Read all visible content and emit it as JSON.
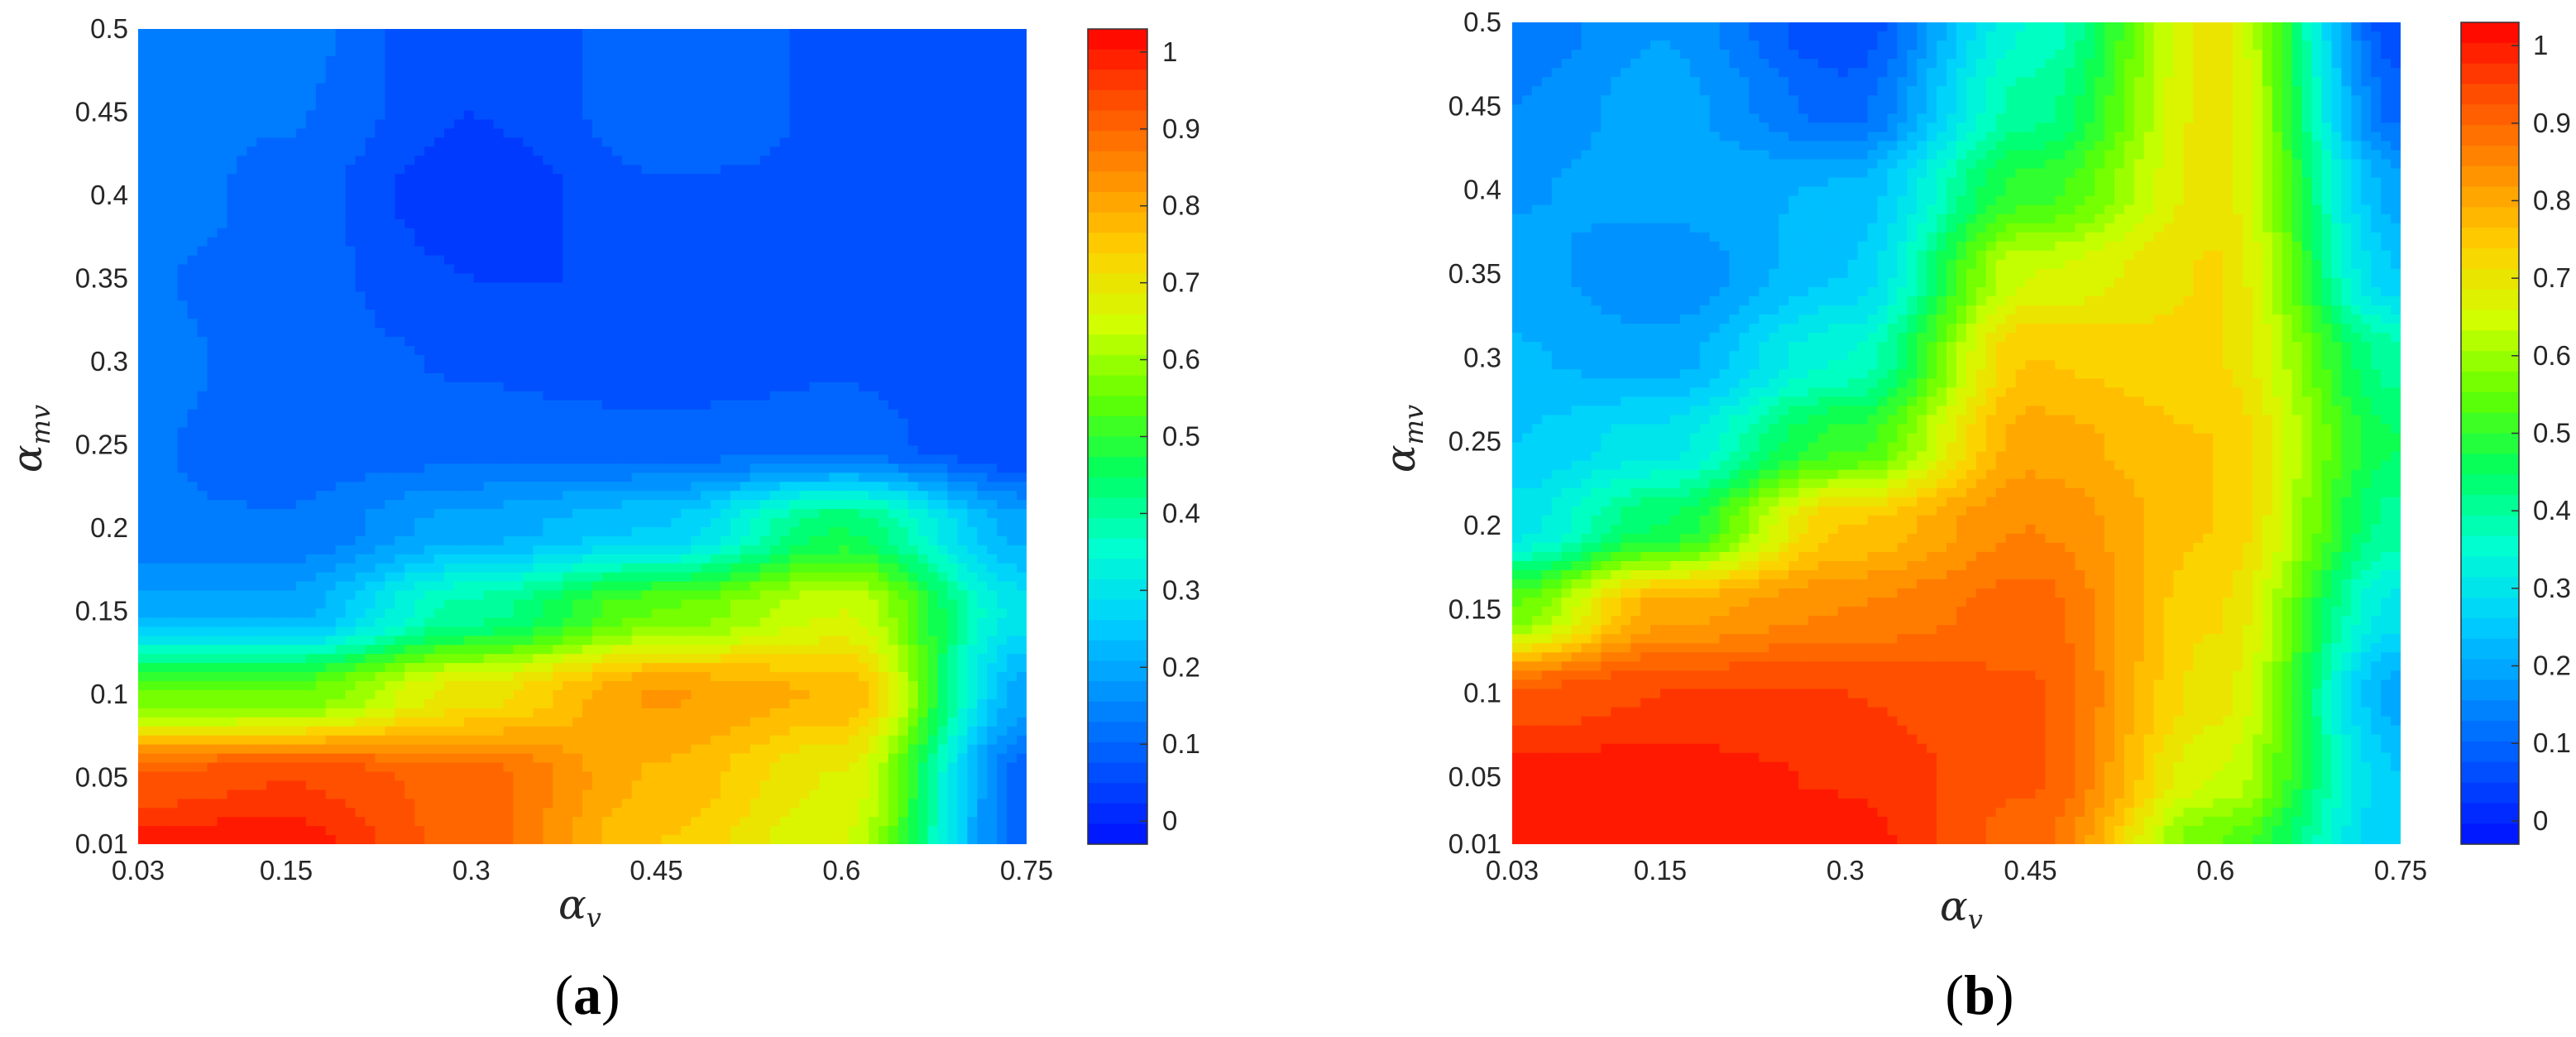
{
  "chart_data": [
    {
      "type": "heatmap",
      "panel_label": {
        "open": "(",
        "letter": "a",
        "close": ")"
      },
      "xlabel": {
        "base": "α",
        "sub": "v"
      },
      "ylabel": {
        "base": "α",
        "sub": "mv"
      },
      "x_ticks": [
        "0.03",
        "0.15",
        "0.3",
        "0.45",
        "0.6",
        "0.75"
      ],
      "y_ticks": [
        "0.01",
        "0.05",
        "0.1",
        "0.15",
        "0.2",
        "0.25",
        "0.3",
        "0.35",
        "0.4",
        "0.45",
        "0.5"
      ],
      "xlim": [
        0.03,
        0.75
      ],
      "ylim": [
        0.01,
        0.5
      ],
      "colorbar_ticks": [
        "0",
        "0.1",
        "0.2",
        "0.3",
        "0.4",
        "0.5",
        "0.6",
        "0.7",
        "0.8",
        "0.9",
        "1"
      ],
      "colorbar_range": [
        -0.03,
        1.03
      ],
      "colormap": [
        "#0010ff",
        "#0050ff",
        "#0090ff",
        "#00d0ff",
        "#00ffd0",
        "#00ff60",
        "#60ff00",
        "#d0ff00",
        "#ffd000",
        "#ff9000",
        "#ff5000",
        "#ff0000"
      ],
      "x": [
        0.03,
        0.15,
        0.3,
        0.45,
        0.6,
        0.75
      ],
      "y": [
        0.01,
        0.05,
        0.1,
        0.15,
        0.2,
        0.25,
        0.3,
        0.35,
        0.4,
        0.45,
        0.5
      ],
      "z": [
        [
          1.0,
          1.0,
          0.9,
          0.75,
          0.65,
          0.1
        ],
        [
          0.92,
          0.95,
          0.9,
          0.78,
          0.68,
          0.1
        ],
        [
          0.55,
          0.55,
          0.7,
          0.82,
          0.78,
          0.2
        ],
        [
          0.2,
          0.2,
          0.4,
          0.55,
          0.65,
          0.3
        ],
        [
          0.12,
          0.12,
          0.2,
          0.25,
          0.45,
          0.2
        ],
        [
          0.12,
          0.1,
          0.1,
          0.1,
          0.1,
          0.05
        ],
        [
          0.13,
          0.1,
          0.08,
          0.06,
          0.08,
          0.05
        ],
        [
          0.12,
          0.1,
          0.05,
          0.05,
          0.08,
          0.05
        ],
        [
          0.15,
          0.1,
          0.02,
          0.08,
          0.08,
          0.05
        ],
        [
          0.13,
          0.12,
          0.05,
          0.1,
          0.08,
          0.05
        ],
        [
          0.15,
          0.13,
          0.05,
          0.1,
          0.08,
          0.05
        ]
      ]
    },
    {
      "type": "heatmap",
      "panel_label": {
        "open": "(",
        "letter": "b",
        "close": ")"
      },
      "xlabel": {
        "base": "α",
        "sub": "v"
      },
      "ylabel": {
        "base": "α",
        "sub": "mv"
      },
      "x_ticks": [
        "0.03",
        "0.15",
        "0.3",
        "0.45",
        "0.6",
        "0.75"
      ],
      "y_ticks": [
        "0.01",
        "0.05",
        "0.1",
        "0.15",
        "0.2",
        "0.25",
        "0.3",
        "0.35",
        "0.4",
        "0.45",
        "0.5"
      ],
      "xlim": [
        0.03,
        0.75
      ],
      "ylim": [
        0.01,
        0.5
      ],
      "colorbar_ticks": [
        "0",
        "0.1",
        "0.2",
        "0.3",
        "0.4",
        "0.5",
        "0.6",
        "0.7",
        "0.8",
        "0.9",
        "1"
      ],
      "colorbar_range": [
        -0.03,
        1.03
      ],
      "colormap": [
        "#0010ff",
        "#0050ff",
        "#0090ff",
        "#00d0ff",
        "#00ffd0",
        "#00ff60",
        "#60ff00",
        "#d0ff00",
        "#ffd000",
        "#ff9000",
        "#ff5000",
        "#ff0000"
      ],
      "x": [
        0.03,
        0.15,
        0.3,
        0.45,
        0.6,
        0.75
      ],
      "y": [
        0.01,
        0.05,
        0.1,
        0.15,
        0.2,
        0.25,
        0.3,
        0.35,
        0.4,
        0.45,
        0.5
      ],
      "z": [
        [
          1.0,
          1.0,
          1.0,
          0.9,
          0.55,
          0.25
        ],
        [
          1.0,
          1.0,
          0.98,
          0.92,
          0.65,
          0.25
        ],
        [
          0.92,
          0.95,
          0.95,
          0.92,
          0.7,
          0.2
        ],
        [
          0.55,
          0.8,
          0.85,
          0.9,
          0.72,
          0.3
        ],
        [
          0.3,
          0.45,
          0.75,
          0.85,
          0.75,
          0.4
        ],
        [
          0.25,
          0.3,
          0.5,
          0.8,
          0.75,
          0.45
        ],
        [
          0.22,
          0.2,
          0.35,
          0.75,
          0.72,
          0.4
        ],
        [
          0.2,
          0.15,
          0.25,
          0.65,
          0.72,
          0.25
        ],
        [
          0.18,
          0.2,
          0.22,
          0.5,
          0.7,
          0.2
        ],
        [
          0.15,
          0.2,
          0.1,
          0.4,
          0.7,
          0.1
        ],
        [
          0.12,
          0.18,
          0.05,
          0.35,
          0.7,
          0.05
        ]
      ]
    }
  ]
}
